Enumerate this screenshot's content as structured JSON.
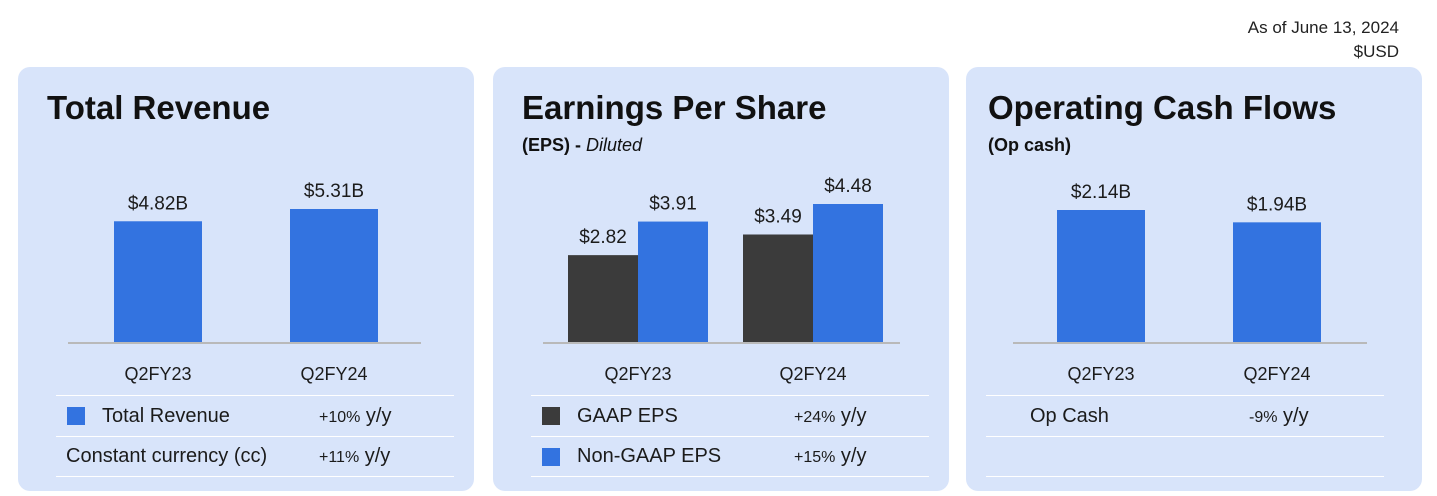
{
  "header": {
    "as_of": "As of June 13, 2024",
    "currency": "$USD"
  },
  "colors": {
    "card_bg": "#d8e4fa",
    "blue": "#3373e0",
    "dark": "#3b3b3b",
    "axis": "#b9b9b9"
  },
  "revenue": {
    "title": "Total Revenue",
    "rows": [
      {
        "label": "Total Revenue",
        "change_num": "+10%",
        "change_unit": " y/y",
        "swatch": "blue"
      },
      {
        "label": "Constant currency (cc)",
        "change_num": "+11%",
        "change_unit": " y/y",
        "swatch": ""
      }
    ]
  },
  "eps": {
    "title": "Earnings Per Share",
    "subtitle_bold": "(EPS) - ",
    "subtitle_italic": "Diluted",
    "rows": [
      {
        "label": "GAAP EPS",
        "change_num": "+24%",
        "change_unit": " y/y",
        "swatch": "dark"
      },
      {
        "label": "Non-GAAP EPS",
        "change_num": "+15%",
        "change_unit": " y/y",
        "swatch": "blue"
      }
    ]
  },
  "cash": {
    "title": "Operating Cash Flows",
    "subtitle": "(Op cash)",
    "rows": [
      {
        "label": "Op Cash",
        "change_num": "-9%",
        "change_unit": " y/y",
        "swatch": ""
      },
      {
        "label": "",
        "change_num": "",
        "change_unit": "",
        "swatch": ""
      }
    ]
  },
  "chart_data": [
    {
      "type": "bar",
      "title": "Total Revenue",
      "categories": [
        "Q2FY23",
        "Q2FY24"
      ],
      "series": [
        {
          "name": "Total Revenue",
          "values": [
            4.82,
            5.31
          ],
          "labels": [
            "$4.82B",
            "$5.31B"
          ],
          "color": "#3373e0"
        }
      ]
    },
    {
      "type": "bar",
      "title": "Earnings Per Share",
      "categories": [
        "Q2FY23",
        "Q2FY24"
      ],
      "series": [
        {
          "name": "GAAP EPS",
          "values": [
            2.82,
            3.49
          ],
          "labels": [
            "$2.82",
            "$3.49"
          ],
          "color": "#3b3b3b"
        },
        {
          "name": "Non-GAAP EPS",
          "values": [
            3.91,
            4.48
          ],
          "labels": [
            "$3.91",
            "$4.48"
          ],
          "color": "#3373e0"
        }
      ]
    },
    {
      "type": "bar",
      "title": "Operating Cash Flows",
      "categories": [
        "Q2FY23",
        "Q2FY24"
      ],
      "series": [
        {
          "name": "Op Cash",
          "values": [
            2.14,
            1.94
          ],
          "labels": [
            "$2.14B",
            "$1.94B"
          ],
          "color": "#3373e0"
        }
      ]
    }
  ]
}
